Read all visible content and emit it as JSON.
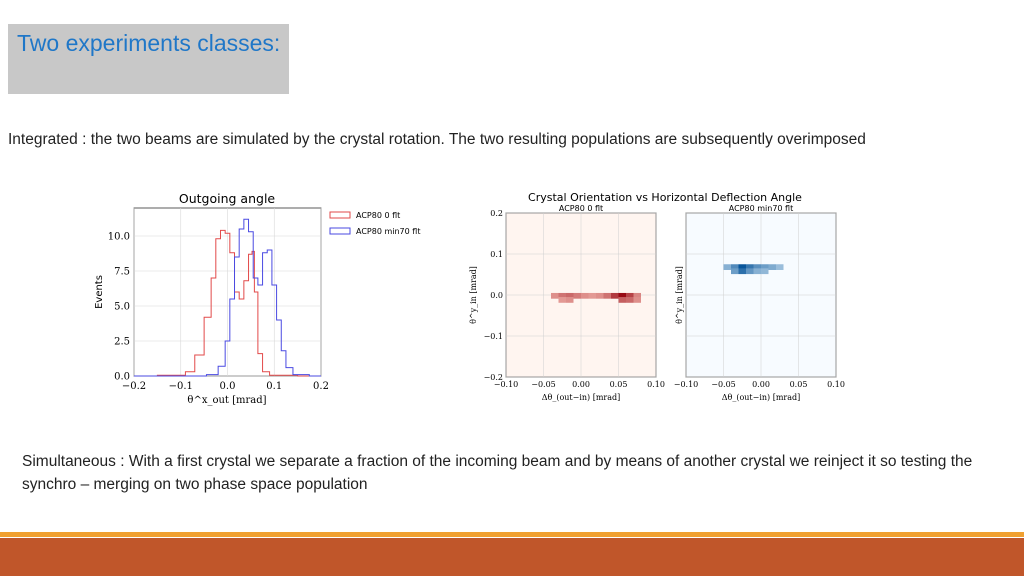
{
  "title": "Two experiments classes:",
  "integrated_text": "Integrated : the two beams are simulated by the crystal rotation. The two resulting populations are subsequently overimposed",
  "simultaneous_text": "Simultaneous : With a first crystal we separate a fraction of the incoming beam and by means of another crystal we reinject it so testing the synchro – merging on two phase space population",
  "colors": {
    "title": "#1f77c8",
    "footer_bar": "#c0562a",
    "footer_stripe": "#f0a030",
    "series_red": "#e24a4a",
    "series_blue": "#4a4ae2"
  },
  "chart_data": [
    {
      "type": "line",
      "title": "Outgoing angle",
      "xlabel": "θ^x_out [mrad]",
      "ylabel": "Events",
      "xlim": [
        -0.2,
        0.2
      ],
      "ylim": [
        0,
        12
      ],
      "x_ticks": [
        "−0.2",
        "−0.1",
        "0.0",
        "0.1",
        "0.2"
      ],
      "y_ticks": [
        "0.0",
        "2.5",
        "5.0",
        "7.5",
        "10.0"
      ],
      "legend": [
        "ACP80 0 flt",
        "ACP80 min70 flt"
      ],
      "legend_position": "top-right",
      "series": [
        {
          "name": "ACP80 0 flt",
          "x": [
            -0.2,
            -0.1,
            -0.08,
            -0.06,
            -0.04,
            -0.03,
            -0.02,
            -0.01,
            0.0,
            0.01,
            0.02,
            0.03,
            0.04,
            0.05,
            0.055,
            0.06,
            0.07,
            0.08,
            0.1,
            0.2
          ],
          "values": [
            0,
            0.05,
            0.3,
            1.5,
            4.2,
            7.0,
            9.8,
            10.4,
            10.2,
            8.8,
            6.0,
            5.5,
            6.8,
            8.7,
            8.9,
            6.0,
            1.6,
            0.3,
            0.05,
            0
          ]
        },
        {
          "name": "ACP80 min70 flt",
          "x": [
            -0.2,
            -0.06,
            -0.03,
            -0.01,
            0.0,
            0.01,
            0.02,
            0.03,
            0.04,
            0.05,
            0.06,
            0.07,
            0.08,
            0.09,
            0.1,
            0.11,
            0.12,
            0.13,
            0.15,
            0.2
          ],
          "values": [
            0,
            0,
            0.1,
            0.7,
            2.5,
            5.5,
            8.5,
            10.5,
            11.2,
            10.3,
            7.0,
            6.5,
            8.8,
            9.0,
            6.5,
            4.0,
            1.8,
            0.6,
            0.1,
            0
          ]
        }
      ]
    },
    {
      "type": "heatmap",
      "title": "Crystal Orientation vs Horizontal Deflection Angle",
      "panels": [
        {
          "subtitle": "ACP80 0 flt",
          "colormap": "Reds",
          "xlabel": "Δθ_(out−in) [mrad]",
          "ylabel": "θ^y_in [mrad]",
          "xlim": [
            -0.1,
            0.1
          ],
          "ylim": [
            -0.2,
            0.2
          ],
          "x_ticks": [
            "−0.10",
            "−0.05",
            "0.00",
            "0.05",
            "0.10"
          ],
          "y_ticks": [
            "0.2",
            "0.1",
            "0.0",
            "−0.1",
            "−0.2"
          ],
          "cells": [
            {
              "x": -0.035,
              "y": 0.0,
              "intensity": 0.3
            },
            {
              "x": -0.025,
              "y": 0.0,
              "intensity": 0.45
            },
            {
              "x": -0.015,
              "y": 0.0,
              "intensity": 0.5
            },
            {
              "x": -0.005,
              "y": 0.0,
              "intensity": 0.4
            },
            {
              "x": 0.005,
              "y": 0.0,
              "intensity": 0.3
            },
            {
              "x": 0.015,
              "y": 0.0,
              "intensity": 0.25
            },
            {
              "x": 0.025,
              "y": 0.0,
              "intensity": 0.3
            },
            {
              "x": 0.035,
              "y": 0.0,
              "intensity": 0.45
            },
            {
              "x": 0.045,
              "y": 0.0,
              "intensity": 0.75
            },
            {
              "x": 0.055,
              "y": 0.0,
              "intensity": 1.0
            },
            {
              "x": 0.065,
              "y": 0.0,
              "intensity": 0.7
            },
            {
              "x": 0.075,
              "y": 0.0,
              "intensity": 0.35
            },
            {
              "x": -0.025,
              "y": -0.01,
              "intensity": 0.25
            },
            {
              "x": -0.015,
              "y": -0.01,
              "intensity": 0.3
            },
            {
              "x": 0.055,
              "y": -0.01,
              "intensity": 0.55
            },
            {
              "x": 0.065,
              "y": -0.01,
              "intensity": 0.5
            },
            {
              "x": 0.075,
              "y": -0.01,
              "intensity": 0.3
            }
          ]
        },
        {
          "subtitle": "ACP80 min70 flt",
          "colormap": "Blues",
          "xlabel": "Δθ_(out−in) [mrad]",
          "ylabel": "θ^y_in [mrad]",
          "xlim": [
            -0.1,
            0.1
          ],
          "ylim": [
            -0.2,
            0.2
          ],
          "x_ticks": [
            "−0.10",
            "−0.05",
            "0.00",
            "0.05",
            "0.10"
          ],
          "y_ticks": [],
          "cells": [
            {
              "x": -0.045,
              "y": 0.07,
              "intensity": 0.3
            },
            {
              "x": -0.035,
              "y": 0.07,
              "intensity": 0.6
            },
            {
              "x": -0.025,
              "y": 0.07,
              "intensity": 1.0
            },
            {
              "x": -0.015,
              "y": 0.07,
              "intensity": 0.75
            },
            {
              "x": -0.005,
              "y": 0.07,
              "intensity": 0.55
            },
            {
              "x": 0.005,
              "y": 0.07,
              "intensity": 0.45
            },
            {
              "x": 0.015,
              "y": 0.07,
              "intensity": 0.35
            },
            {
              "x": 0.025,
              "y": 0.07,
              "intensity": 0.2
            },
            {
              "x": -0.035,
              "y": 0.06,
              "intensity": 0.45
            },
            {
              "x": -0.025,
              "y": 0.06,
              "intensity": 0.8
            },
            {
              "x": -0.015,
              "y": 0.06,
              "intensity": 0.5
            },
            {
              "x": -0.005,
              "y": 0.06,
              "intensity": 0.3
            },
            {
              "x": 0.005,
              "y": 0.06,
              "intensity": 0.25
            }
          ]
        }
      ]
    }
  ]
}
